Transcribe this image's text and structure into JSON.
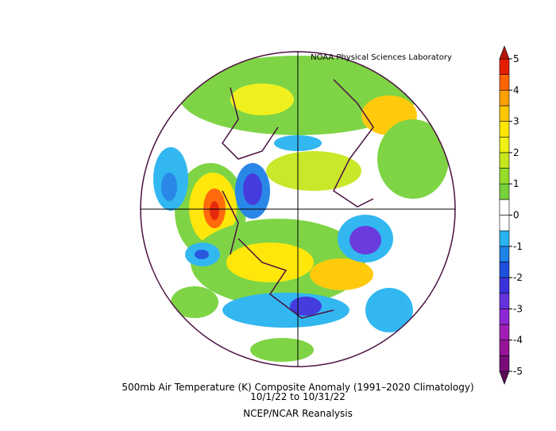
{
  "credit": "NOAA Physical Sciences Laboratory",
  "title": "500mb Air Temperature (K) Composite Anomaly (1991–2020 Climatology)",
  "dates": "10/1/22  to 10/31/22",
  "source": "NCEP/NCAR Reanalysis",
  "colorbar": {
    "ticks": [
      -5,
      -4,
      -3,
      -2,
      -1,
      0,
      1,
      2,
      3,
      4,
      5
    ],
    "colors": [
      "#7a0c7a",
      "#961496",
      "#a01eb4",
      "#8c28d2",
      "#6432dc",
      "#3c32dc",
      "#1e50dc",
      "#1e82e6",
      "#28b4f0",
      "#ffffff",
      "#ffffff",
      "#78d23c",
      "#96dc28",
      "#c8e61e",
      "#f0f014",
      "#ffe600",
      "#ffc800",
      "#ffa000",
      "#ff6400",
      "#e61e00"
    ],
    "under_color": "#5a0a5a",
    "over_color": "#b4140a"
  }
}
